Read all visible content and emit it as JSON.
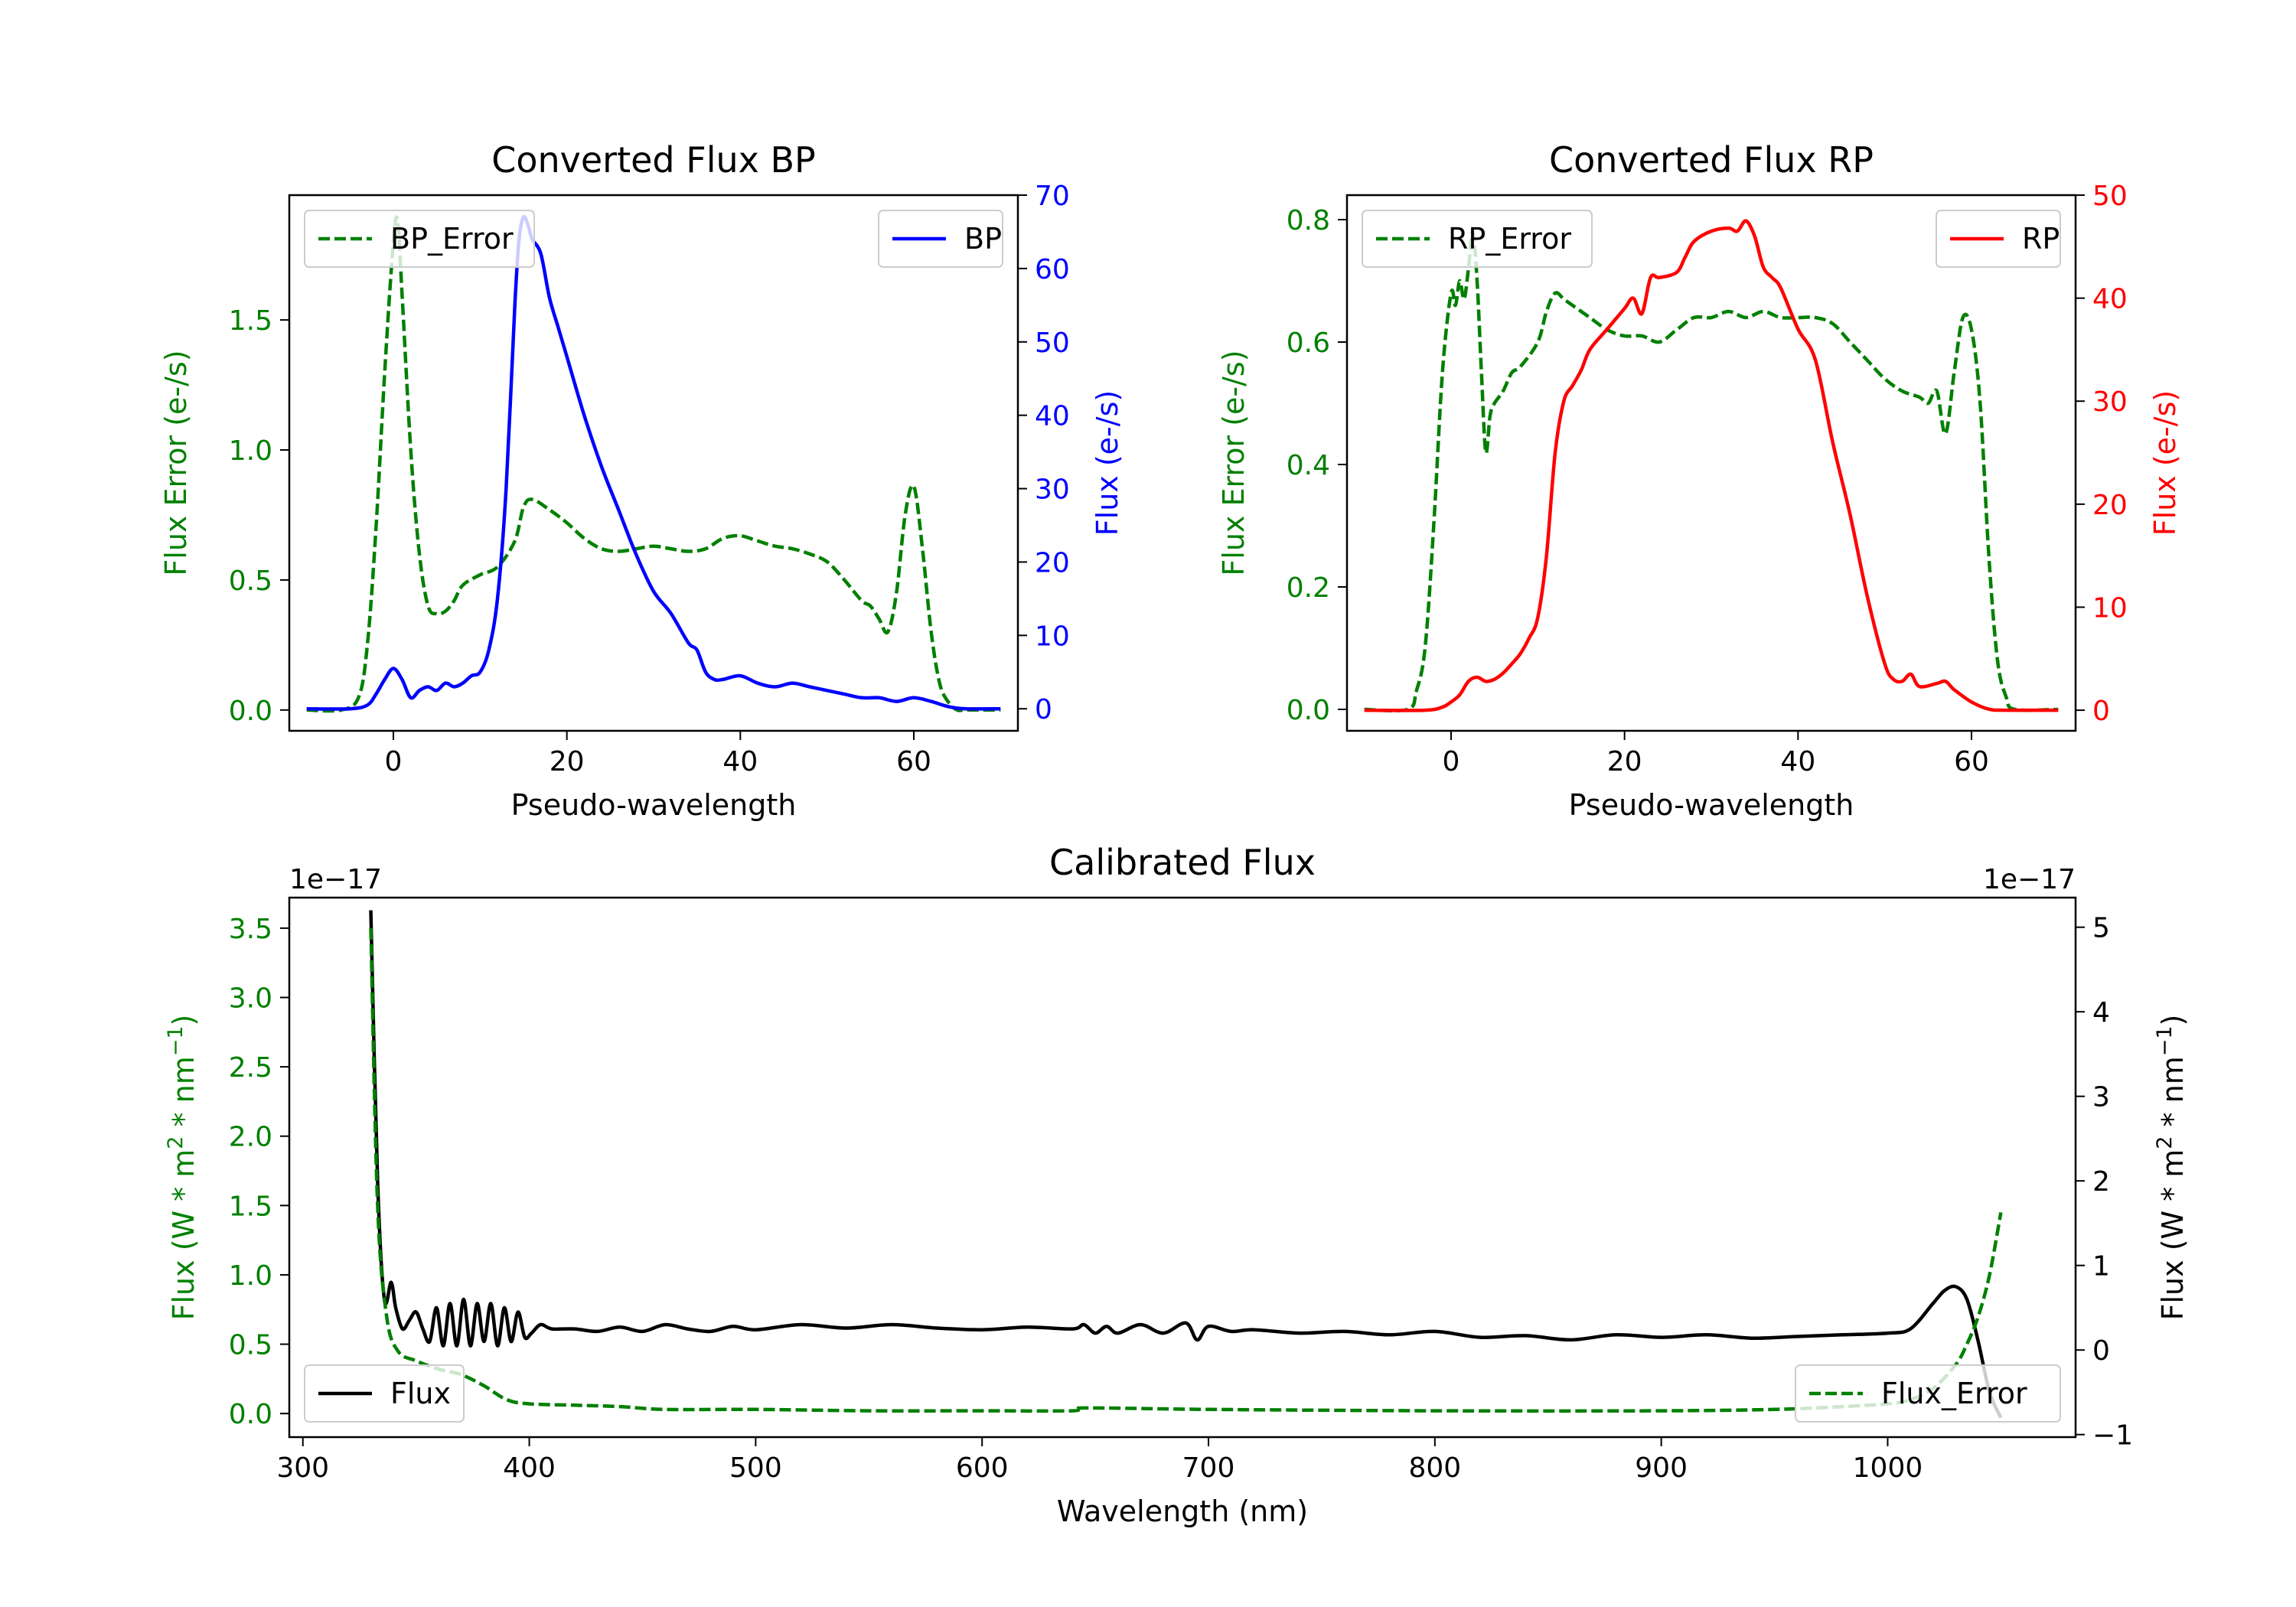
{
  "colors": {
    "green": "#008000",
    "blue": "#0000ff",
    "red": "#ff0000",
    "black": "#000000"
  },
  "chart_data": [
    {
      "id": "bp",
      "type": "line",
      "title": "Converted Flux BP",
      "xlabel": "Pseudo-wavelength",
      "ylabel_left": "Flux Error (e-/s)",
      "ylabel_right": "Flux (e-/s)",
      "xlim": [
        -12,
        72
      ],
      "ylim_left": [
        -0.08,
        1.98
      ],
      "ylim_right": [
        -3,
        70
      ],
      "xticks": [
        0,
        20,
        40,
        60
      ],
      "yticks_left": [
        0.0,
        0.5,
        1.0,
        1.5
      ],
      "ytick_labels_left": [
        "0.0",
        "0.5",
        "1.0",
        "1.5"
      ],
      "yticks_right": [
        0,
        10,
        20,
        30,
        40,
        50,
        60,
        70
      ],
      "ytick_labels_right": [
        "0",
        "10",
        "20",
        "30",
        "40",
        "50",
        "60",
        "70"
      ],
      "series": [
        {
          "name": "BP_Error",
          "axis": "left",
          "style": "dashed",
          "color": "#008000",
          "legend": "top-left",
          "x": [
            -10,
            -6,
            -4,
            -3,
            -2,
            -1,
            0,
            0.5,
            1,
            2,
            3,
            4,
            5,
            6,
            7,
            8,
            10,
            12,
            14,
            15,
            16,
            18,
            20,
            22,
            24,
            26,
            28,
            30,
            32,
            34,
            36,
            38,
            40,
            42,
            44,
            46,
            48,
            50,
            52,
            54,
            55,
            56,
            57,
            58,
            59,
            60,
            61,
            62,
            63,
            64,
            65,
            66,
            70
          ],
          "y": [
            0.0,
            0.0,
            0.05,
            0.25,
            0.7,
            1.3,
            1.8,
            1.88,
            1.6,
            1.0,
            0.6,
            0.4,
            0.37,
            0.38,
            0.42,
            0.48,
            0.52,
            0.55,
            0.65,
            0.78,
            0.81,
            0.77,
            0.72,
            0.66,
            0.62,
            0.61,
            0.62,
            0.63,
            0.62,
            0.61,
            0.62,
            0.66,
            0.67,
            0.65,
            0.63,
            0.62,
            0.6,
            0.57,
            0.5,
            0.42,
            0.4,
            0.35,
            0.3,
            0.45,
            0.75,
            0.86,
            0.62,
            0.3,
            0.1,
            0.03,
            0.0,
            0.0,
            0.0
          ]
        },
        {
          "name": "BP",
          "axis": "right",
          "style": "solid",
          "color": "#0000ff",
          "legend": "top-right",
          "x": [
            -10,
            -5,
            -3,
            -2,
            -1,
            0,
            1,
            2,
            3,
            4,
            5,
            6,
            7,
            8,
            9,
            10,
            11,
            12,
            13,
            14,
            14.5,
            15,
            15.5,
            16,
            17,
            18,
            19,
            20,
            22,
            24,
            26,
            28,
            30,
            32,
            34,
            35,
            36,
            37,
            38,
            40,
            42,
            44,
            46,
            48,
            50,
            52,
            54,
            56,
            58,
            60,
            62,
            64,
            66,
            70
          ],
          "y": [
            0,
            0,
            0.5,
            2,
            4,
            5.5,
            4,
            1.5,
            2.5,
            3,
            2.5,
            3.5,
            3,
            3.5,
            4.5,
            5,
            8,
            15,
            30,
            55,
            64,
            67,
            66,
            64,
            62,
            56,
            52,
            48,
            40,
            33,
            27,
            21,
            16,
            13,
            9,
            8,
            5,
            4,
            4,
            4.5,
            3.5,
            3,
            3.5,
            3,
            2.5,
            2,
            1.5,
            1.5,
            1,
            1.5,
            1,
            0.3,
            0,
            0
          ]
        }
      ]
    },
    {
      "id": "rp",
      "type": "line",
      "title": "Converted Flux RP",
      "xlabel": "Pseudo-wavelength",
      "ylabel_left": "Flux Error (e-/s)",
      "ylabel_right": "Flux (e-/s)",
      "xlim": [
        -12,
        72
      ],
      "ylim_left": [
        -0.035,
        0.84
      ],
      "ylim_right": [
        -2,
        50
      ],
      "xticks": [
        0,
        20,
        40,
        60
      ],
      "yticks_left": [
        0.0,
        0.2,
        0.4,
        0.6,
        0.8
      ],
      "ytick_labels_left": [
        "0.0",
        "0.2",
        "0.4",
        "0.6",
        "0.8"
      ],
      "yticks_right": [
        0,
        10,
        20,
        30,
        40,
        50
      ],
      "ytick_labels_right": [
        "0",
        "10",
        "20",
        "30",
        "40",
        "50"
      ],
      "series": [
        {
          "name": "RP_Error",
          "axis": "left",
          "style": "dashed",
          "color": "#008000",
          "legend": "top-left",
          "x": [
            -10,
            -5,
            -4,
            -3,
            -2,
            -1,
            0,
            0.5,
            1,
            1.5,
            2,
            2.5,
            3,
            3.5,
            4,
            4.5,
            5,
            6,
            7,
            8,
            10,
            11,
            12,
            13,
            14,
            16,
            18,
            20,
            22,
            24,
            26,
            28,
            30,
            32,
            34,
            36,
            38,
            40,
            42,
            44,
            46,
            48,
            50,
            52,
            54,
            55,
            56,
            57,
            58,
            59,
            60,
            61,
            62,
            63,
            64,
            65,
            70
          ],
          "y": [
            0.0,
            0.0,
            0.03,
            0.1,
            0.3,
            0.55,
            0.68,
            0.66,
            0.7,
            0.67,
            0.72,
            0.78,
            0.7,
            0.55,
            0.42,
            0.48,
            0.5,
            0.52,
            0.55,
            0.56,
            0.6,
            0.65,
            0.68,
            0.67,
            0.66,
            0.64,
            0.62,
            0.61,
            0.61,
            0.6,
            0.62,
            0.64,
            0.64,
            0.65,
            0.64,
            0.65,
            0.64,
            0.64,
            0.64,
            0.63,
            0.6,
            0.57,
            0.54,
            0.52,
            0.51,
            0.5,
            0.52,
            0.45,
            0.55,
            0.64,
            0.62,
            0.5,
            0.25,
            0.08,
            0.02,
            0.0,
            0.0
          ]
        },
        {
          "name": "RP",
          "axis": "right",
          "style": "solid",
          "color": "#ff0000",
          "legend": "top-right",
          "x": [
            -10,
            -3,
            -1,
            0,
            1,
            2,
            3,
            4,
            5,
            6,
            7,
            8,
            9,
            10,
            11,
            12,
            13,
            14,
            15,
            16,
            18,
            20,
            21,
            22,
            23,
            24,
            26,
            27,
            28,
            30,
            32,
            33,
            34,
            35,
            36,
            37,
            38,
            40,
            42,
            44,
            46,
            48,
            50,
            51,
            52,
            53,
            54,
            56,
            57,
            58,
            60,
            62,
            64,
            70
          ],
          "y": [
            0,
            0,
            0.3,
            0.8,
            1.5,
            2.8,
            3.2,
            2.8,
            3,
            3.6,
            4.5,
            5.5,
            7,
            9,
            15,
            25,
            30,
            31.5,
            33,
            35,
            37,
            39,
            40,
            38.5,
            42,
            42,
            42.5,
            44,
            45.5,
            46.5,
            46.8,
            46.5,
            47.5,
            46,
            43,
            42,
            41,
            37,
            34,
            26,
            19,
            11,
            4.5,
            3,
            2.8,
            3.5,
            2.3,
            2.6,
            2.8,
            2,
            0.8,
            0.1,
            0,
            0
          ]
        }
      ]
    },
    {
      "id": "calibrated",
      "type": "line",
      "title": "Calibrated Flux",
      "xlabel": "Wavelength (nm)",
      "ylabel_left_parts": [
        "Flux (W * m",
        "2",
        " * nm",
        "−1",
        ")"
      ],
      "ylabel_right_parts": [
        "Flux (W * m",
        "2",
        " * nm",
        "−1",
        ")"
      ],
      "scale_left": "1e−17",
      "scale_right": "1e−17",
      "xlim": [
        294,
        1083
      ],
      "ylim_left": [
        -0.17,
        3.72
      ],
      "ylim_right": [
        -1.03,
        5.35
      ],
      "xticks": [
        300,
        400,
        500,
        600,
        700,
        800,
        900,
        1000
      ],
      "yticks_left": [
        0.0,
        0.5,
        1.0,
        1.5,
        2.0,
        2.5,
        3.0,
        3.5
      ],
      "ytick_labels_left": [
        "0.0",
        "0.5",
        "1.0",
        "1.5",
        "2.0",
        "2.5",
        "3.0",
        "3.5"
      ],
      "yticks_right": [
        -1,
        0,
        1,
        2,
        3,
        4,
        5
      ],
      "ytick_labels_right": [
        "−1",
        "0",
        "1",
        "2",
        "3",
        "4",
        "5"
      ],
      "series": [
        {
          "name": "Flux",
          "axis": "right",
          "style": "solid",
          "color": "#000000",
          "legend": "bottom-left",
          "x": [
            330,
            333,
            336,
            339,
            341,
            344,
            347,
            350,
            353,
            356,
            359,
            362,
            365,
            368,
            371,
            374,
            377,
            380,
            383,
            386,
            389,
            392,
            395,
            398,
            401,
            405,
            410,
            420,
            430,
            440,
            450,
            460,
            470,
            480,
            490,
            500,
            520,
            540,
            560,
            580,
            600,
            620,
            640,
            645,
            650,
            655,
            660,
            670,
            680,
            690,
            695,
            700,
            710,
            720,
            740,
            760,
            780,
            800,
            820,
            840,
            860,
            880,
            900,
            920,
            940,
            960,
            980,
            1000,
            1010,
            1020,
            1025,
            1030,
            1035,
            1040,
            1045,
            1050
          ],
          "y": [
            5.2,
            2.0,
            0.6,
            0.8,
            0.5,
            0.25,
            0.35,
            0.45,
            0.25,
            0.1,
            0.5,
            0.05,
            0.55,
            0.05,
            0.6,
            0.05,
            0.55,
            0.1,
            0.55,
            0.05,
            0.5,
            0.1,
            0.45,
            0.15,
            0.2,
            0.3,
            0.25,
            0.25,
            0.22,
            0.27,
            0.22,
            0.3,
            0.25,
            0.22,
            0.28,
            0.24,
            0.3,
            0.26,
            0.3,
            0.26,
            0.24,
            0.27,
            0.25,
            0.3,
            0.2,
            0.28,
            0.2,
            0.3,
            0.2,
            0.32,
            0.12,
            0.28,
            0.22,
            0.24,
            0.2,
            0.22,
            0.18,
            0.22,
            0.15,
            0.17,
            0.12,
            0.18,
            0.15,
            0.18,
            0.14,
            0.16,
            0.18,
            0.2,
            0.25,
            0.55,
            0.7,
            0.75,
            0.6,
            0.1,
            -0.5,
            -0.8
          ]
        },
        {
          "name": "Flux_Error",
          "axis": "left",
          "style": "dashed",
          "color": "#008000",
          "legend": "bottom-right",
          "x": [
            330,
            333,
            337,
            342,
            350,
            360,
            370,
            380,
            390,
            400,
            420,
            440,
            460,
            500,
            550,
            600,
            640,
            645,
            700,
            800,
            900,
            950,
            980,
            1000,
            1010,
            1020,
            1030,
            1035,
            1040,
            1045,
            1050
          ],
          "y": [
            3.5,
            1.5,
            0.7,
            0.45,
            0.38,
            0.32,
            0.28,
            0.2,
            0.1,
            0.07,
            0.06,
            0.05,
            0.03,
            0.03,
            0.02,
            0.02,
            0.02,
            0.04,
            0.03,
            0.02,
            0.02,
            0.03,
            0.05,
            0.07,
            0.1,
            0.18,
            0.35,
            0.5,
            0.7,
            1.0,
            1.45
          ]
        }
      ]
    }
  ]
}
